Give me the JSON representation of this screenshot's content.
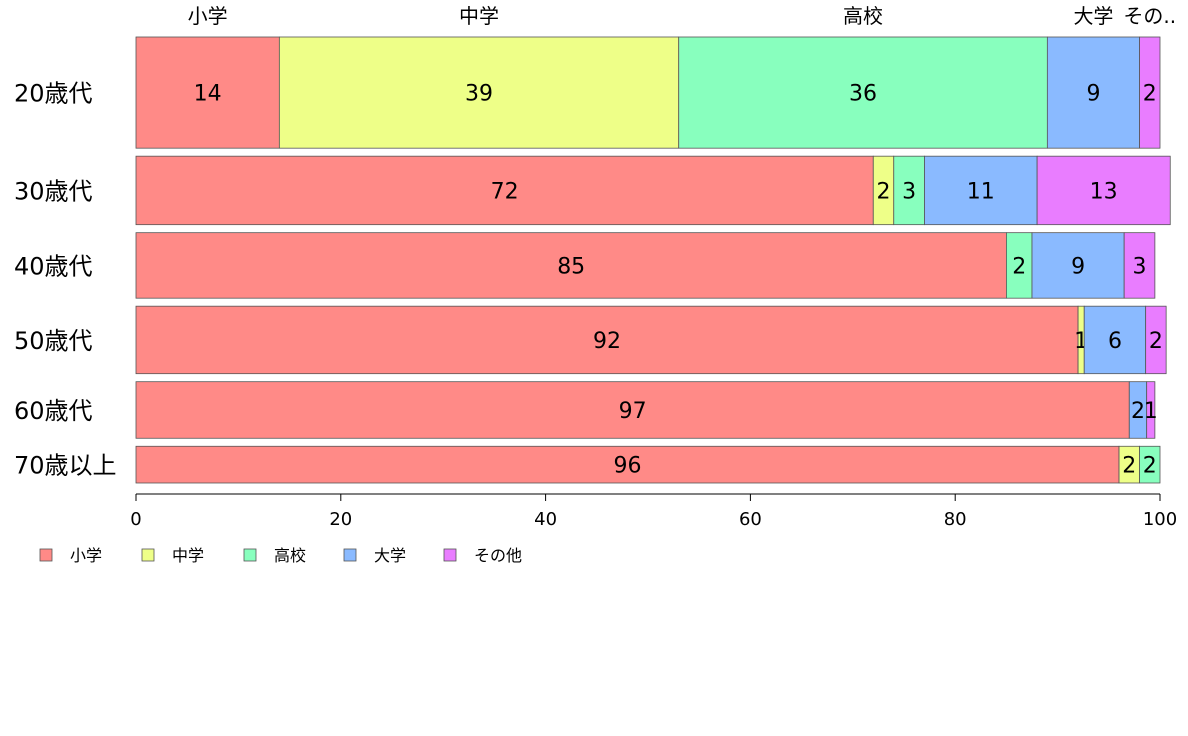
{
  "chart_data": {
    "type": "bar",
    "orientation": "horizontal",
    "stacked": true,
    "categories": [
      "20歳代",
      "30歳代",
      "40歳代",
      "50歳代",
      "60歳代",
      "70歳以上"
    ],
    "category_weights": [
      112,
      69,
      66,
      68,
      57,
      37
    ],
    "series": [
      {
        "name": "小学",
        "color": "#FF8A87",
        "values": [
          14,
          72,
          85,
          92,
          97,
          96
        ],
        "labels": [
          "14",
          "72",
          "85",
          "92",
          "97",
          "96"
        ]
      },
      {
        "name": "中学",
        "color": "#EEFF88",
        "values": [
          39,
          2,
          0,
          0.6,
          0,
          2
        ],
        "labels": [
          "39",
          "2",
          "",
          "1",
          "",
          "2"
        ]
      },
      {
        "name": "高校",
        "color": "#88FFBE",
        "values": [
          36,
          3,
          2.5,
          0,
          0,
          2
        ],
        "labels": [
          "36",
          "3",
          "2",
          "",
          "",
          "2"
        ]
      },
      {
        "name": "大学",
        "color": "#8ABAFF",
        "values": [
          9,
          11,
          9,
          6,
          1.7,
          0
        ],
        "labels": [
          "9",
          "11",
          "9",
          "6",
          "2",
          ""
        ]
      },
      {
        "name": "その他",
        "color": "#E97DFF",
        "values": [
          2,
          13,
          3,
          2,
          0.8,
          0
        ],
        "labels": [
          "2",
          "13",
          "3",
          "2",
          "1",
          ""
        ]
      }
    ],
    "top_labels": [
      "小学",
      "中学",
      "高校",
      "大学",
      "その.."
    ],
    "xticks": [
      0,
      20,
      40,
      60,
      80,
      100
    ],
    "xlim": [
      0,
      100
    ],
    "grid": false,
    "legend_position": "bottom-left"
  }
}
